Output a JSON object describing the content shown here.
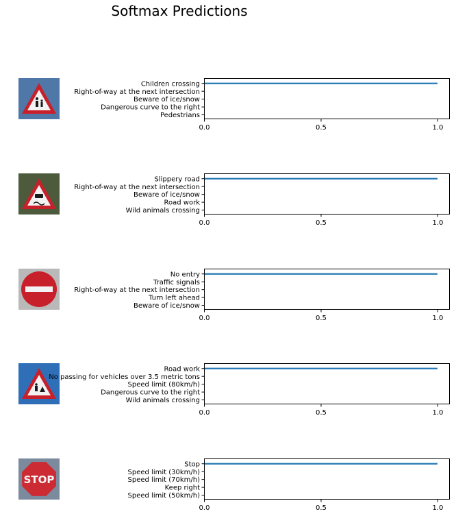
{
  "title": "Softmax Predictions",
  "images": [
    {
      "name": "children-crossing-sign-icon",
      "bg": "#4f77a8",
      "shape": "triangle",
      "rim": "#c8202a",
      "glyph": "children"
    },
    {
      "name": "slippery-road-sign-icon",
      "bg": "#4d5a3c",
      "shape": "triangle",
      "rim": "#c8202a",
      "glyph": "car"
    },
    {
      "name": "no-entry-sign-icon",
      "bg": "#b9b9b9",
      "shape": "circle",
      "rim": "#c8202a",
      "glyph": "bar"
    },
    {
      "name": "road-work-sign-icon",
      "bg": "#2f6fb8",
      "shape": "triangle",
      "rim": "#c8202a",
      "glyph": "worker"
    },
    {
      "name": "stop-sign-icon",
      "bg": "#7c8a9e",
      "shape": "octagon",
      "rim": "#cc2b33",
      "glyph": "stop",
      "text": "STOP"
    }
  ],
  "chart_data": [
    {
      "type": "bar",
      "orientation": "horizontal",
      "categories": [
        "Children crossing",
        "Right-of-way at the next intersection",
        "Beware of ice/snow",
        "Dangerous curve to the right",
        "Pedestrians"
      ],
      "values": [
        1.0,
        0.0,
        0.0,
        0.0,
        0.0
      ],
      "xlim": [
        0,
        1.05
      ],
      "xticks": [
        "0.0",
        "0.5",
        "1.0"
      ]
    },
    {
      "type": "bar",
      "orientation": "horizontal",
      "categories": [
        "Slippery road",
        "Right-of-way at the next intersection",
        "Beware of ice/snow",
        "Road work",
        "Wild animals crossing"
      ],
      "values": [
        1.0,
        0.0,
        0.0,
        0.0,
        0.0
      ],
      "xlim": [
        0,
        1.05
      ],
      "xticks": [
        "0.0",
        "0.5",
        "1.0"
      ]
    },
    {
      "type": "bar",
      "orientation": "horizontal",
      "categories": [
        "No entry",
        "Traffic signals",
        "Right-of-way at the next intersection",
        "Turn left ahead",
        "Beware of ice/snow"
      ],
      "values": [
        1.0,
        0.0,
        0.0,
        0.0,
        0.0
      ],
      "xlim": [
        0,
        1.05
      ],
      "xticks": [
        "0.0",
        "0.5",
        "1.0"
      ]
    },
    {
      "type": "bar",
      "orientation": "horizontal",
      "categories": [
        "Road work",
        "No passing for vehicles over 3.5 metric tons",
        "Speed limit (80km/h)",
        "Dangerous curve to the right",
        "Wild animals crossing"
      ],
      "values": [
        1.0,
        0.0,
        0.0,
        0.0,
        0.0
      ],
      "xlim": [
        0,
        1.05
      ],
      "xticks": [
        "0.0",
        "0.5",
        "1.0"
      ]
    },
    {
      "type": "bar",
      "orientation": "horizontal",
      "categories": [
        "Stop",
        "Speed limit (30km/h)",
        "Speed limit (70km/h)",
        "Keep right",
        "Speed limit (50km/h)"
      ],
      "values": [
        1.0,
        0.0,
        0.0,
        0.0,
        0.0
      ],
      "xlim": [
        0,
        1.05
      ],
      "xticks": [
        "0.0",
        "0.5",
        "1.0"
      ]
    }
  ],
  "colors": {
    "bar": "#1f77b4",
    "axis": "#000000"
  }
}
